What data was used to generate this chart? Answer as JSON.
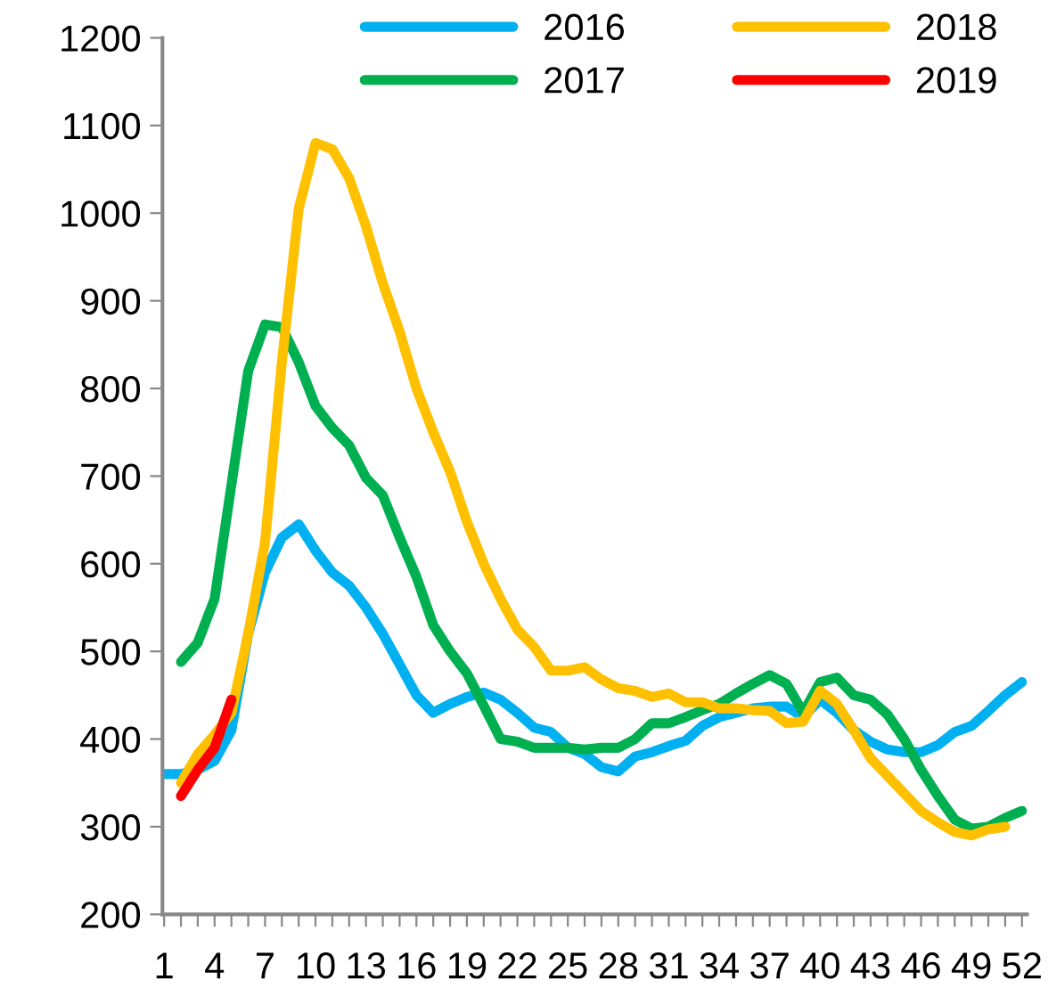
{
  "chart_data": {
    "type": "line",
    "categories": [
      "1",
      null,
      null,
      "4",
      null,
      null,
      "7",
      null,
      null,
      "10",
      null,
      null,
      "13",
      null,
      null,
      "16",
      null,
      null,
      "19",
      null,
      null,
      "22",
      null,
      null,
      "25",
      null,
      null,
      "28",
      null,
      null,
      "31",
      null,
      null,
      "34",
      null,
      null,
      "37",
      null,
      null,
      "40",
      null,
      null,
      "43",
      null,
      null,
      "46",
      null,
      null,
      "49",
      null,
      null,
      "52"
    ],
    "ylim": [
      200,
      1200
    ],
    "yticks": [
      200,
      300,
      400,
      500,
      600,
      700,
      800,
      900,
      1000,
      1100,
      1200
    ],
    "grid": false,
    "legend": "top",
    "marker": "none",
    "line_style": "solid",
    "series": [
      {
        "name": "2016",
        "color": "#00b0f0",
        "values": [
          360,
          360,
          365,
          375,
          410,
          520,
          590,
          630,
          645,
          615,
          590,
          575,
          550,
          520,
          485,
          450,
          430,
          440,
          448,
          453,
          445,
          430,
          413,
          408,
          390,
          383,
          368,
          363,
          380,
          385,
          392,
          398,
          415,
          425,
          430,
          435,
          437,
          437,
          425,
          445,
          430,
          410,
          397,
          388,
          385,
          385,
          393,
          408,
          415,
          432,
          450,
          465
        ]
      },
      {
        "name": "2017",
        "color": "#00b050",
        "values": [
          null,
          488,
          510,
          560,
          690,
          820,
          873,
          870,
          830,
          780,
          755,
          735,
          698,
          678,
          630,
          585,
          530,
          500,
          475,
          438,
          400,
          397,
          390,
          390,
          390,
          388,
          390,
          390,
          400,
          418,
          418,
          425,
          433,
          440,
          452,
          463,
          473,
          463,
          430,
          465,
          470,
          450,
          445,
          428,
          400,
          365,
          335,
          308,
          298,
          300,
          310,
          318
        ]
      },
      {
        "name": "2018",
        "color": "#ffc000",
        "values": [
          null,
          350,
          383,
          405,
          430,
          520,
          625,
          830,
          1005,
          1080,
          1073,
          1040,
          985,
          920,
          865,
          800,
          750,
          705,
          648,
          600,
          560,
          525,
          505,
          478,
          478,
          482,
          468,
          458,
          455,
          448,
          452,
          442,
          442,
          435,
          435,
          433,
          432,
          418,
          420,
          455,
          440,
          410,
          378,
          358,
          338,
          318,
          305,
          294,
          290,
          297,
          300,
          null
        ]
      },
      {
        "name": "2019",
        "color": "#ff0000",
        "values": [
          null,
          335,
          365,
          390,
          445,
          null,
          null,
          null,
          null,
          null,
          null,
          null,
          null,
          null,
          null,
          null,
          null,
          null,
          null,
          null,
          null,
          null,
          null,
          null,
          null,
          null,
          null,
          null,
          null,
          null,
          null,
          null,
          null,
          null,
          null,
          null,
          null,
          null,
          null,
          null,
          null,
          null,
          null,
          null,
          null,
          null,
          null,
          null,
          null,
          null,
          null,
          null
        ]
      }
    ]
  }
}
